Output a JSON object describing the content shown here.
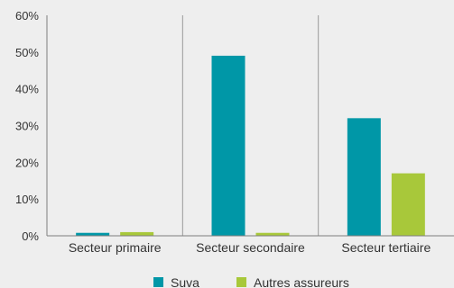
{
  "chart_data": {
    "type": "bar",
    "categories": [
      "Secteur primaire",
      "Secteur secondaire",
      "Secteur tertiaire"
    ],
    "series": [
      {
        "name": "Suva",
        "values": [
          0.8,
          49,
          32
        ],
        "color": "#0097a7"
      },
      {
        "name": "Autres assureurs",
        "values": [
          1,
          0.8,
          17
        ],
        "color": "#a8c83a"
      }
    ],
    "y_ticks": [
      "0%",
      "10%",
      "20%",
      "30%",
      "40%",
      "50%",
      "60%"
    ],
    "ylim": [
      0,
      60
    ],
    "y_unit": "%",
    "grid": "vertical-separators",
    "legend": "bottom-center"
  }
}
